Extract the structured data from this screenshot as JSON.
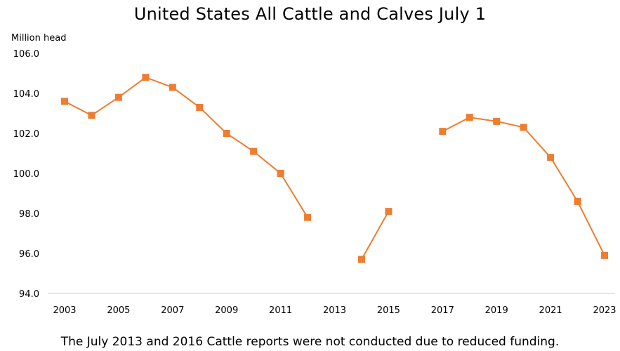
{
  "chart_data": {
    "type": "line",
    "title": "United States All Cattle and Calves July 1",
    "ylabel": "Million head",
    "xlabel": "",
    "ylim": [
      94.0,
      106.0
    ],
    "xlim": [
      2003,
      2023
    ],
    "y_ticks": [
      "94.0",
      "96.0",
      "98.0",
      "100.0",
      "102.0",
      "104.0",
      "106.0"
    ],
    "y_tick_values": [
      94,
      96,
      98,
      100,
      102,
      104,
      106
    ],
    "x_ticks": [
      "2003",
      "2005",
      "2007",
      "2009",
      "2011",
      "2013",
      "2015",
      "2017",
      "2019",
      "2021",
      "2023"
    ],
    "x_tick_values": [
      2003,
      2005,
      2007,
      2009,
      2011,
      2013,
      2015,
      2017,
      2019,
      2021,
      2023
    ],
    "grid": false,
    "legend": "none",
    "series": [
      {
        "color": "#ED7D31",
        "marker": "square",
        "points": [
          {
            "x": 2003,
            "y": 103.6
          },
          {
            "x": 2004,
            "y": 102.9
          },
          {
            "x": 2005,
            "y": 103.8
          },
          {
            "x": 2006,
            "y": 104.8
          },
          {
            "x": 2007,
            "y": 104.3
          },
          {
            "x": 2008,
            "y": 103.3
          },
          {
            "x": 2009,
            "y": 102.0
          },
          {
            "x": 2010,
            "y": 101.1
          },
          {
            "x": 2011,
            "y": 100.0
          },
          {
            "x": 2012,
            "y": 97.8
          },
          {
            "x": 2013,
            "y": null
          },
          {
            "x": 2014,
            "y": 95.7
          },
          {
            "x": 2015,
            "y": 98.1
          },
          {
            "x": 2016,
            "y": null
          },
          {
            "x": 2017,
            "y": 102.1
          },
          {
            "x": 2018,
            "y": 102.8
          },
          {
            "x": 2019,
            "y": 102.6
          },
          {
            "x": 2020,
            "y": 102.3
          },
          {
            "x": 2021,
            "y": 100.8
          },
          {
            "x": 2022,
            "y": 98.6
          },
          {
            "x": 2023,
            "y": 95.9
          }
        ]
      }
    ],
    "footnote": "The July 2013 and 2016 Cattle reports were not conducted due to reduced funding.",
    "axis_color": "#D9D9D9"
  }
}
